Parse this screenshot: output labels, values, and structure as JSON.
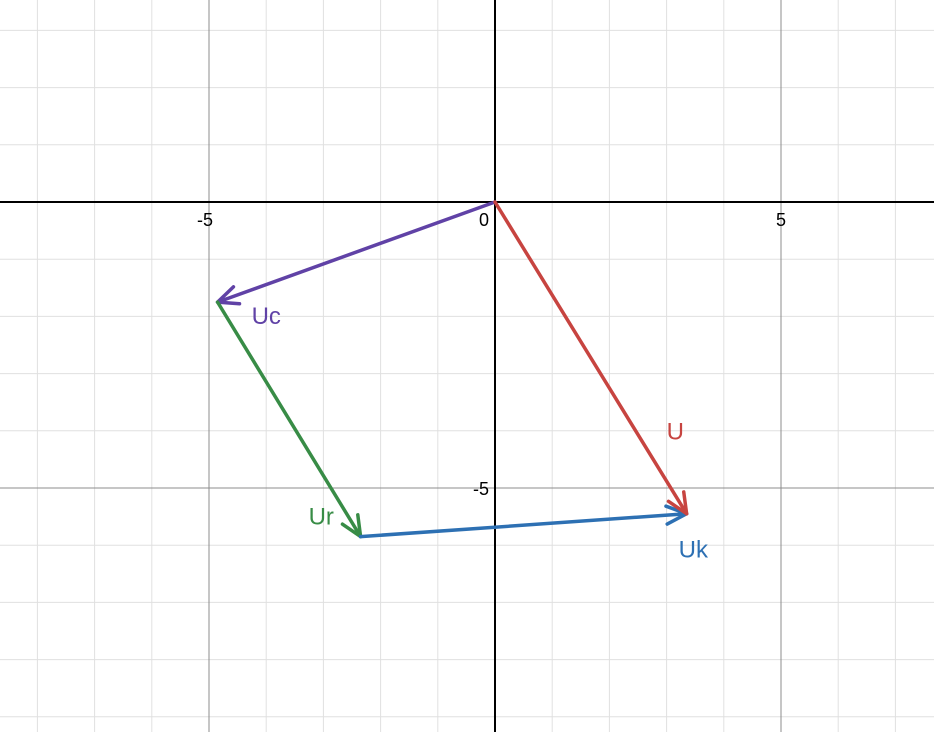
{
  "chart_data": {
    "type": "vector-diagram",
    "xlim": [
      -8.6,
      7.7
    ],
    "ylim": [
      -9.2,
      3.5
    ],
    "grid": true,
    "grid_minor_step": 1,
    "grid_major_step": 5,
    "ticks": {
      "x": [
        {
          "value": -5,
          "label": "-5"
        },
        {
          "value": 0,
          "label": "0"
        },
        {
          "value": 5,
          "label": "5"
        }
      ],
      "y": [
        {
          "value": -5,
          "label": "-5"
        }
      ]
    },
    "vectors": [
      {
        "id": "uc",
        "label": "Uc",
        "color": "#6042a6",
        "from": [
          0,
          0
        ],
        "to": [
          -4.85,
          -1.75
        ]
      },
      {
        "id": "ur",
        "label": "Ur",
        "color": "#388c46",
        "from": [
          -4.85,
          -1.75
        ],
        "to": [
          -2.35,
          -5.85
        ]
      },
      {
        "id": "uk",
        "label": "Uk",
        "color": "#2d70b3",
        "from": [
          -2.35,
          -5.85
        ],
        "to": [
          3.35,
          -5.45
        ]
      },
      {
        "id": "u",
        "label": "U",
        "color": "#c74440",
        "from": [
          0,
          0
        ],
        "to": [
          3.35,
          -5.45
        ]
      }
    ]
  }
}
